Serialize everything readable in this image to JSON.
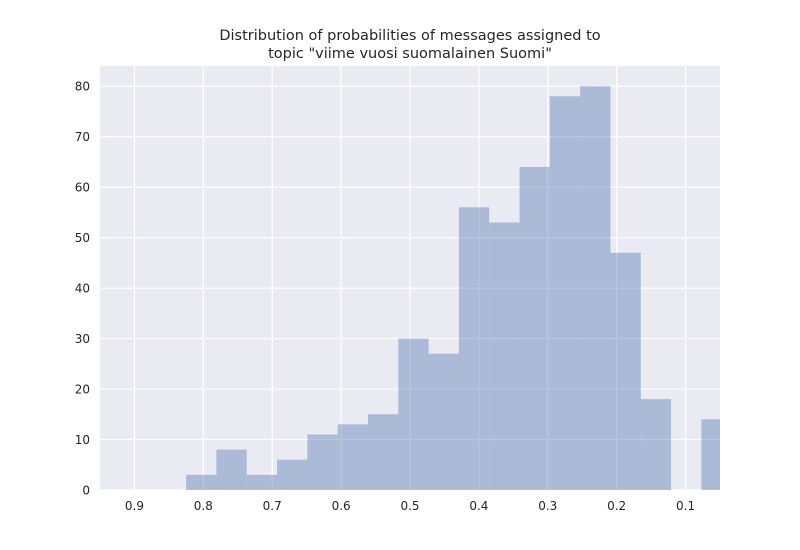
{
  "chart_data": {
    "type": "bar",
    "title_lines": [
      "Distribution of probabilities of messages assigned to",
      "topic \"viime vuosi suomalainen Suomi\""
    ],
    "xlabel": "",
    "ylabel": "",
    "x_reversed": true,
    "xlim": [
      0.95,
      0.05
    ],
    "ylim": [
      0,
      84
    ],
    "grid": true,
    "x_ticks": [
      "0.9",
      "0.8",
      "0.7",
      "0.6",
      "0.5",
      "0.4",
      "0.3",
      "0.2",
      "0.1"
    ],
    "y_ticks": [
      "0",
      "10",
      "20",
      "30",
      "40",
      "50",
      "60",
      "70",
      "80"
    ],
    "bins": [
      {
        "x0": 0.05,
        "x1": 0.077,
        "value": 14
      },
      {
        "x0": 0.077,
        "x1": 0.121,
        "value": 0
      },
      {
        "x0": 0.121,
        "x1": 0.165,
        "value": 18
      },
      {
        "x0": 0.165,
        "x1": 0.209,
        "value": 47
      },
      {
        "x0": 0.209,
        "x1": 0.253,
        "value": 80
      },
      {
        "x0": 0.253,
        "x1": 0.297,
        "value": 78
      },
      {
        "x0": 0.297,
        "x1": 0.341,
        "value": 64
      },
      {
        "x0": 0.341,
        "x1": 0.385,
        "value": 53
      },
      {
        "x0": 0.385,
        "x1": 0.429,
        "value": 56
      },
      {
        "x0": 0.429,
        "x1": 0.473,
        "value": 27
      },
      {
        "x0": 0.473,
        "x1": 0.517,
        "value": 30
      },
      {
        "x0": 0.517,
        "x1": 0.561,
        "value": 15
      },
      {
        "x0": 0.561,
        "x1": 0.605,
        "value": 13
      },
      {
        "x0": 0.605,
        "x1": 0.649,
        "value": 11
      },
      {
        "x0": 0.649,
        "x1": 0.693,
        "value": 6
      },
      {
        "x0": 0.693,
        "x1": 0.737,
        "value": 3
      },
      {
        "x0": 0.737,
        "x1": 0.781,
        "value": 8
      },
      {
        "x0": 0.781,
        "x1": 0.825,
        "value": 3
      }
    ],
    "colors": {
      "background": "#eaeaf2",
      "grid": "#ffffff",
      "bar": "#4c72b0",
      "bar_opacity": 0.4
    }
  }
}
